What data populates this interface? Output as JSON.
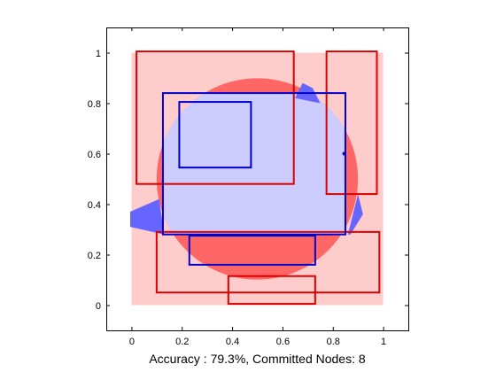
{
  "chart_data": {
    "type": "decision-region-plot",
    "title": "",
    "xlabel": "Accuracy : 79.3%, Committed Nodes: 8",
    "ylabel": "",
    "xlim": [
      -0.1,
      1.1
    ],
    "ylim": [
      -0.1,
      1.1
    ],
    "grid": false,
    "xticks": [
      "0",
      "0.2",
      "0.4",
      "0.6",
      "0.8",
      "1"
    ],
    "yticks": [
      "0",
      "0.2",
      "0.4",
      "0.6",
      "0.8",
      "1"
    ],
    "xtick_values": [
      0,
      0.2,
      0.4,
      0.6,
      0.8,
      1
    ],
    "ytick_values": [
      0,
      0.2,
      0.4,
      0.6,
      0.8,
      1
    ],
    "colors": {
      "background": "#ffcccc",
      "red_class": "#ff6666",
      "blue_region": "#ccccff",
      "blue_class": "#6666ff",
      "red_box": "#dd0000",
      "blue_box": "#0000cc"
    },
    "background_region": {
      "x0": 0,
      "y0": 0,
      "x1": 1,
      "y1": 1
    },
    "circle": {
      "cx": 0.5,
      "cy": 0.5,
      "r": 0.4
    },
    "blue_corner_patches": [
      [
        [
          -0.005,
          0.31
        ],
        [
          -0.005,
          0.37
        ],
        [
          0.11,
          0.42
        ],
        [
          0.13,
          0.28
        ]
      ],
      [
        [
          0.68,
          0.88
        ],
        [
          0.72,
          0.86
        ],
        [
          0.75,
          0.8
        ],
        [
          0.65,
          0.82
        ]
      ],
      [
        [
          0.87,
          0.28
        ],
        [
          0.92,
          0.36
        ],
        [
          0.9,
          0.44
        ],
        [
          0.86,
          0.28
        ]
      ]
    ],
    "blue_dot": {
      "x": 0.845,
      "y": 0.6
    },
    "red_boxes": [
      {
        "x0": 0.02,
        "y0": 0.48,
        "x1": 0.645,
        "y1": 1.005
      },
      {
        "x0": 0.775,
        "y0": 0.44,
        "x1": 0.975,
        "y1": 1.005
      },
      {
        "x0": 0.1,
        "y0": 0.05,
        "x1": 0.985,
        "y1": 0.29
      },
      {
        "x0": 0.385,
        "y0": 0.005,
        "x1": 0.73,
        "y1": 0.115
      }
    ],
    "blue_boxes": [
      {
        "x0": 0.125,
        "y0": 0.28,
        "x1": 0.85,
        "y1": 0.84
      },
      {
        "x0": 0.19,
        "y0": 0.545,
        "x1": 0.475,
        "y1": 0.805
      },
      {
        "x0": 0.23,
        "y0": 0.16,
        "x1": 0.73,
        "y1": 0.275
      }
    ]
  }
}
